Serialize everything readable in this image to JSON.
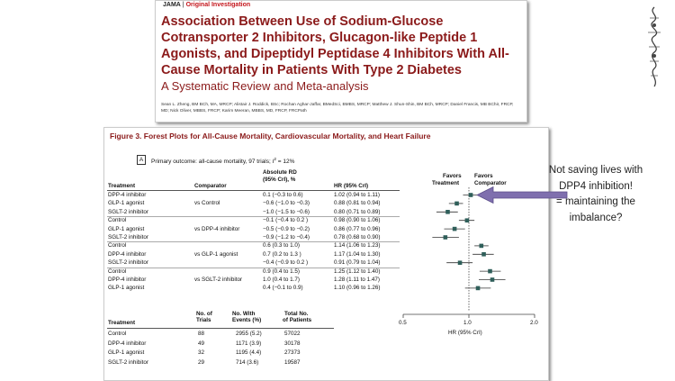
{
  "article": {
    "journal": "JAMA",
    "separator": "|",
    "type": "Original Investigation",
    "title": "Association Between Use of Sodium-Glucose Cotransporter 2 Inhibitors, Glucagon-like Peptide 1 Agonists, and Dipeptidyl Peptidase 4 Inhibitors With All-Cause Mortality in Patients With Type 2 Diabetes",
    "subtitle": "A Systematic Review and Meta-analysis",
    "authors": "Sean L. Zheng, BM BCh, MA, MRCP; Alistair J. Roddick, BSc; Rochan Aghar-Jaffar, BMedSci, BMBS, MRCP; Matthew J. Shun-Shin, BM BCh, MRCP; Daniel Francis, MB BChir, FRCP, MD; Nick Oliver, MBBS, FRCP; Karim Meeran, MBBS, MD, FRCP, FRCPath"
  },
  "figure": {
    "title": "Figure 3. Forest Plots for All-Cause Mortality, Cardiovascular Mortality, and Heart Failure",
    "panel": "A",
    "outcome_prefix": "Primary outcome: all-cause mortality, 97 trials; ",
    "i_squared_symbol": "I",
    "i_squared_sup": "2",
    "i_squared_value": " = 12%",
    "columns": {
      "treatment": "Treatment",
      "comparator": "Comparator",
      "abs_rd_line1": "Absolute RD",
      "abs_rd_line2": "(95% CrI), %",
      "hr": "HR (95% CrI)",
      "favors_treatment_1": "Favors",
      "favors_treatment_2": "Treatment",
      "favors_comparator_1": "Favors",
      "favors_comparator_2": "Comparator"
    },
    "rows": [
      {
        "treatment": "DPP-4 inhibitor",
        "comparator": "",
        "rd": "0.1 (−0.3 to 0.6)",
        "hr": "1.02 (0.94 to 1.11)",
        "est": 1.02,
        "lo": 0.94,
        "hi": 1.11
      },
      {
        "treatment": "GLP-1 agonist",
        "comparator": "vs Control",
        "rd": "−0.6 (−1.0 to −0.3)",
        "hr": "0.88 (0.81 to 0.94)",
        "est": 0.88,
        "lo": 0.81,
        "hi": 0.94
      },
      {
        "treatment": "SGLT-2 inhibitor",
        "comparator": "",
        "rd": "−1.0 (−1.5 to −0.6)",
        "hr": "0.80 (0.71 to 0.89)",
        "est": 0.8,
        "lo": 0.71,
        "hi": 0.89
      },
      {
        "treatment": "Control",
        "comparator": "",
        "rd": "−0.1 (−0.4 to 0.2 )",
        "hr": "0.98 (0.90 to 1.06)",
        "est": 0.98,
        "lo": 0.9,
        "hi": 1.06
      },
      {
        "treatment": "GLP-1 agonist",
        "comparator": "vs DPP-4 inhibitor",
        "rd": "−0.5 (−0.9 to −0.2)",
        "hr": "0.86 (0.77 to 0.96)",
        "est": 0.86,
        "lo": 0.77,
        "hi": 0.96
      },
      {
        "treatment": "SGLT-2 inhibitor",
        "comparator": "",
        "rd": "−0.9 (−1.2 to −0.4)",
        "hr": "0.78 (0.68 to 0.90)",
        "est": 0.78,
        "lo": 0.68,
        "hi": 0.9
      },
      {
        "treatment": "Control",
        "comparator": "",
        "rd": "0.6 (0.3 to 1.0)",
        "hr": "1.14 (1.06 to 1.23)",
        "est": 1.14,
        "lo": 1.06,
        "hi": 1.23
      },
      {
        "treatment": "DPP-4 inhibitor",
        "comparator": "vs GLP-1 agonist",
        "rd": "0.7 (0.2 to 1.3 )",
        "hr": "1.17 (1.04 to 1.30)",
        "est": 1.17,
        "lo": 1.04,
        "hi": 1.3
      },
      {
        "treatment": "SGLT-2 inhibitor",
        "comparator": "",
        "rd": "−0.4 (−0.9 to 0.2 )",
        "hr": "0.91 (0.79 to 1.04)",
        "est": 0.91,
        "lo": 0.79,
        "hi": 1.04
      },
      {
        "treatment": "Control",
        "comparator": "",
        "rd": "0.9 (0.4 to 1.5)",
        "hr": "1.25 (1.12 to 1.40)",
        "est": 1.25,
        "lo": 1.12,
        "hi": 1.4
      },
      {
        "treatment": "DPP-4 inhibitor",
        "comparator": "vs SGLT-2 inhibitor",
        "rd": "1.0 (0.4 to 1.7)",
        "hr": "1.28 (1.11 to 1.47)",
        "est": 1.28,
        "lo": 1.11,
        "hi": 1.47
      },
      {
        "treatment": "GLP-1 agonist",
        "comparator": "",
        "rd": "0.4 (−0.1 to 0.9)",
        "hr": "1.10 (0.96 to 1.26)",
        "est": 1.1,
        "lo": 0.96,
        "hi": 1.26
      }
    ],
    "axis": {
      "ticks": [
        "0.5",
        "1.0",
        "2.0"
      ],
      "label": "HR (95% CrI)"
    },
    "summary_header": {
      "treatment": "Treatment",
      "trials_1": "No. of",
      "trials_2": "Trials",
      "events_1": "No. With",
      "events_2": "Events (%)",
      "patients_1": "Total No.",
      "patients_2": "of Patients"
    },
    "summary_rows": [
      {
        "treatment": "Control",
        "trials": "88",
        "events": "2955 (5.2)",
        "patients": "57022"
      },
      {
        "treatment": "DPP-4 inhibitor",
        "trials": "49",
        "events": "1171 (3.9)",
        "patients": "30178"
      },
      {
        "treatment": "GLP-1 agonist",
        "trials": "32",
        "events": "1195 (4.4)",
        "patients": "27373"
      },
      {
        "treatment": "SGLT-2 inhibitor",
        "trials": "29",
        "events": "714 (3.6)",
        "patients": "19587"
      }
    ]
  },
  "chart_data": {
    "type": "scatter",
    "title": "Figure 3. Forest Plots for All-Cause Mortality, Cardiovascular Mortality, and Heart Failure",
    "xlabel": "HR (95% CrI)",
    "xscale": "log",
    "xlim": [
      0.5,
      2.0
    ],
    "x_ticks": [
      0.5,
      1.0,
      2.0
    ],
    "reference_line": 1.0,
    "categories": [
      "DPP-4 inhibitor vs Control",
      "GLP-1 agonist vs Control",
      "SGLT-2 inhibitor vs Control",
      "Control vs DPP-4 inhibitor",
      "GLP-1 agonist vs DPP-4 inhibitor",
      "SGLT-2 inhibitor vs DPP-4 inhibitor",
      "Control vs GLP-1 agonist",
      "DPP-4 inhibitor vs GLP-1 agonist",
      "SGLT-2 inhibitor vs GLP-1 agonist",
      "Control vs SGLT-2 inhibitor",
      "DPP-4 inhibitor vs SGLT-2 inhibitor",
      "GLP-1 agonist vs SGLT-2 inhibitor"
    ],
    "values": [
      1.02,
      0.88,
      0.8,
      0.98,
      0.86,
      0.78,
      1.14,
      1.17,
      0.91,
      1.25,
      1.28,
      1.1
    ],
    "lower": [
      0.94,
      0.81,
      0.71,
      0.9,
      0.77,
      0.68,
      1.06,
      1.04,
      0.79,
      1.12,
      1.11,
      0.96
    ],
    "upper": [
      1.11,
      0.94,
      0.89,
      1.06,
      0.96,
      0.9,
      1.23,
      1.3,
      1.04,
      1.4,
      1.47,
      1.26
    ]
  },
  "annotation": {
    "line1": "Not saving lives with",
    "line2": "DPP4 inhibition!",
    "line3": "= maintaining the",
    "line4": "imbalance?",
    "arrow_color": "#7f6fae"
  },
  "colors": {
    "title_red": "#8b1a1a",
    "journal_red": "#c4161c",
    "marker": "#2f5f5a"
  }
}
